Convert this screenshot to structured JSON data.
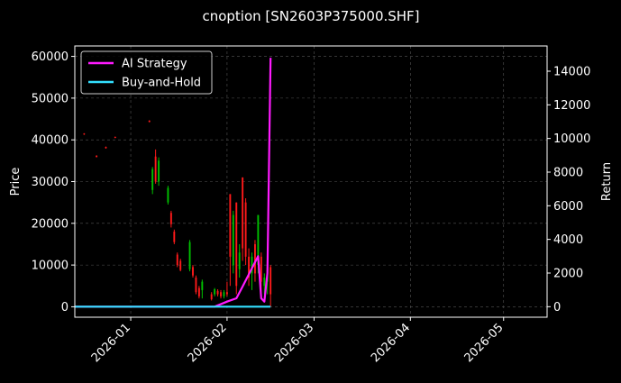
{
  "chart_data": {
    "type": "candlestick+line",
    "title": "cnoption [SN2603P375000.SHF]",
    "ylabel_left": "Price",
    "ylabel_right": "Return",
    "x_ticks": [
      "2026-01",
      "2026-02",
      "2026-03",
      "2026-04",
      "2026-05"
    ],
    "xlim": [
      "2025-12-14",
      "2026-05-15"
    ],
    "y_left": {
      "lim": [
        -2500,
        62500
      ],
      "ticks": [
        0,
        10000,
        20000,
        30000,
        40000,
        50000,
        60000
      ]
    },
    "y_right": {
      "lim": [
        -625,
        15500
      ],
      "ticks": [
        0,
        2000,
        4000,
        6000,
        8000,
        10000,
        12000,
        14000
      ]
    },
    "grid": true,
    "legend": {
      "position": "top-left",
      "entries": [
        "AI Strategy",
        "Buy-and-Hold"
      ]
    },
    "colors": {
      "up": "#00c000",
      "down": "#ff1a1a",
      "ai_strategy": "#ff1aff",
      "buy_and_hold": "#33e0ff",
      "grid": "#555555"
    },
    "candles": [
      {
        "date": "2025-12-17",
        "open": 41500,
        "close": 41300,
        "high": 41600,
        "low": 41200
      },
      {
        "date": "2025-12-21",
        "open": 36200,
        "close": 35900,
        "high": 36300,
        "low": 35800
      },
      {
        "date": "2025-12-24",
        "open": 38300,
        "close": 38000,
        "high": 38400,
        "low": 37900
      },
      {
        "date": "2025-12-27",
        "open": 40700,
        "close": 40500,
        "high": 40800,
        "low": 40400
      },
      {
        "date": "2026-01-07",
        "open": 44600,
        "close": 44300,
        "high": 44700,
        "low": 44200
      },
      {
        "date": "2026-01-08",
        "open": 28000,
        "close": 33000,
        "high": 33500,
        "low": 27000
      },
      {
        "date": "2026-01-09",
        "open": 36000,
        "close": 30000,
        "high": 37700,
        "low": 29500
      },
      {
        "date": "2026-01-10",
        "open": 30000,
        "close": 35000,
        "high": 35800,
        "low": 29000
      },
      {
        "date": "2026-01-13",
        "open": 25000,
        "close": 28500,
        "high": 29000,
        "low": 24500
      },
      {
        "date": "2026-01-14",
        "open": 22500,
        "close": 19800,
        "high": 23000,
        "low": 19000
      },
      {
        "date": "2026-01-15",
        "open": 18000,
        "close": 15500,
        "high": 18500,
        "low": 15000
      },
      {
        "date": "2026-01-16",
        "open": 12500,
        "close": 10000,
        "high": 13000,
        "low": 9500
      },
      {
        "date": "2026-01-17",
        "open": 11000,
        "close": 8800,
        "high": 11500,
        "low": 8500
      },
      {
        "date": "2026-01-20",
        "open": 9000,
        "close": 15500,
        "high": 16000,
        "low": 8500
      },
      {
        "date": "2026-01-21",
        "open": 9500,
        "close": 7500,
        "high": 10000,
        "low": 7000
      },
      {
        "date": "2026-01-22",
        "open": 7000,
        "close": 3500,
        "high": 7500,
        "low": 3000
      },
      {
        "date": "2026-01-23",
        "open": 4500,
        "close": 2500,
        "high": 5000,
        "low": 2000
      },
      {
        "date": "2026-01-24",
        "open": 4000,
        "close": 6000,
        "high": 6500,
        "low": 2000
      },
      {
        "date": "2026-01-27",
        "open": 3000,
        "close": 1800,
        "high": 3500,
        "low": 1500
      },
      {
        "date": "2026-01-28",
        "open": 3000,
        "close": 4200,
        "high": 4500,
        "low": 2500
      },
      {
        "date": "2026-01-29",
        "open": 3800,
        "close": 3000,
        "high": 4200,
        "low": 2500
      },
      {
        "date": "2026-01-30",
        "open": 3500,
        "close": 2500,
        "high": 4000,
        "low": 2000
      },
      {
        "date": "2026-01-31",
        "open": 2500,
        "close": 3500,
        "high": 4000,
        "low": 2000
      },
      {
        "date": "2026-02-01",
        "open": 3500,
        "close": 3000,
        "high": 6000,
        "low": 2500
      },
      {
        "date": "2026-02-02",
        "open": 27000,
        "close": 12000,
        "high": 27000,
        "low": 5000
      },
      {
        "date": "2026-02-03",
        "open": 10000,
        "close": 22000,
        "high": 23000,
        "low": 8000
      },
      {
        "date": "2026-02-04",
        "open": 25000,
        "close": 5000,
        "high": 25000,
        "low": 3000
      },
      {
        "date": "2026-02-05",
        "open": 9000,
        "close": 13000,
        "high": 15000,
        "low": 7000
      },
      {
        "date": "2026-02-06",
        "open": 31000,
        "close": 14000,
        "high": 31000,
        "low": 11000
      },
      {
        "date": "2026-02-07",
        "open": 25000,
        "close": 12000,
        "high": 26000,
        "low": 10000
      },
      {
        "date": "2026-02-08",
        "open": 12000,
        "close": 7000,
        "high": 14000,
        "low": 5000
      },
      {
        "date": "2026-02-09",
        "open": 8000,
        "close": 12000,
        "high": 13000,
        "low": 4000
      },
      {
        "date": "2026-02-10",
        "open": 15000,
        "close": 8000,
        "high": 16000,
        "low": 6000
      },
      {
        "date": "2026-02-11",
        "open": 10000,
        "close": 22000,
        "high": 22000,
        "low": 8000
      },
      {
        "date": "2026-02-12",
        "open": 12000,
        "close": 6000,
        "high": 13000,
        "low": 3000
      },
      {
        "date": "2026-02-13",
        "open": 5000,
        "close": 7000,
        "high": 8000,
        "low": 3000
      },
      {
        "date": "2026-02-14",
        "open": 6000,
        "close": 9500,
        "high": 10000,
        "low": 3000
      },
      {
        "date": "2026-02-15",
        "open": 9500,
        "close": 3000,
        "high": 10000,
        "low": 0
      }
    ],
    "series": [
      {
        "name": "AI Strategy",
        "axis": "right",
        "points": [
          {
            "date": "2025-12-14",
            "value": 0
          },
          {
            "date": "2026-01-28",
            "value": 0
          },
          {
            "date": "2026-02-01",
            "value": 300
          },
          {
            "date": "2026-02-04",
            "value": 500
          },
          {
            "date": "2026-02-06",
            "value": 1200
          },
          {
            "date": "2026-02-11",
            "value": 3000
          },
          {
            "date": "2026-02-12",
            "value": 500
          },
          {
            "date": "2026-02-13",
            "value": 300
          },
          {
            "date": "2026-02-14",
            "value": 2000
          },
          {
            "date": "2026-02-15",
            "value": 14800
          }
        ]
      },
      {
        "name": "Buy-and-Hold",
        "axis": "right",
        "points": [
          {
            "date": "2025-12-14",
            "value": 0
          },
          {
            "date": "2026-02-15",
            "value": 0
          }
        ]
      }
    ]
  }
}
